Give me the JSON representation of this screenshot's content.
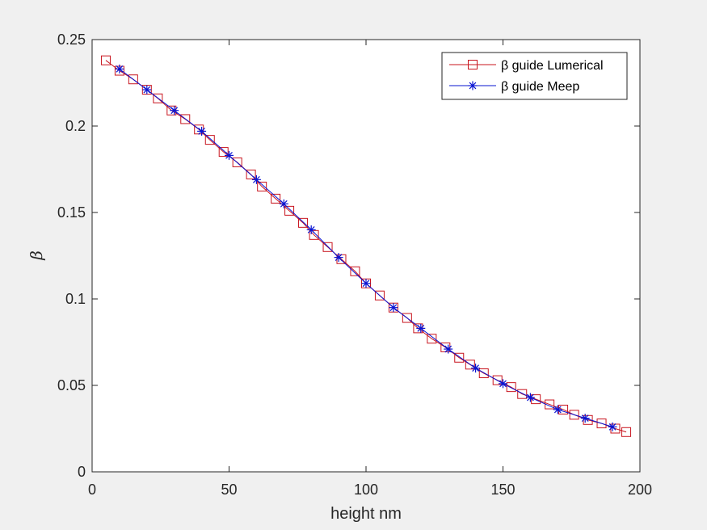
{
  "chart_data": {
    "type": "line",
    "title": "",
    "xlabel": "height nm",
    "ylabel": "β",
    "xlim": [
      0,
      200
    ],
    "ylim": [
      0,
      0.25
    ],
    "xticks": [
      "0",
      "50",
      "100",
      "150",
      "200"
    ],
    "yticks": [
      "0",
      "0.05",
      "0.1",
      "0.15",
      "0.2",
      "0.25"
    ],
    "grid": false,
    "legend_position": "top-right",
    "series": [
      {
        "name": "β guide Lumerical",
        "color": "#c8141e",
        "marker": "square",
        "x": [
          5,
          10,
          15,
          20,
          24,
          29,
          34,
          39,
          43,
          48,
          53,
          58,
          62,
          67,
          72,
          77,
          81,
          86,
          91,
          96,
          100,
          105,
          110,
          115,
          119,
          124,
          129,
          134,
          138,
          143,
          148,
          153,
          157,
          162,
          167,
          172,
          176,
          181,
          186,
          191,
          195
        ],
        "y": [
          0.238,
          0.232,
          0.227,
          0.221,
          0.216,
          0.209,
          0.204,
          0.198,
          0.192,
          0.185,
          0.179,
          0.172,
          0.165,
          0.158,
          0.151,
          0.144,
          0.137,
          0.13,
          0.123,
          0.116,
          0.109,
          0.102,
          0.095,
          0.089,
          0.083,
          0.077,
          0.072,
          0.066,
          0.062,
          0.057,
          0.053,
          0.049,
          0.045,
          0.042,
          0.039,
          0.036,
          0.033,
          0.03,
          0.028,
          0.025,
          0.023
        ]
      },
      {
        "name": "β guide Meep",
        "color": "#0a14d2",
        "marker": "asterisk",
        "x": [
          10,
          20,
          30,
          40,
          50,
          60,
          70,
          80,
          90,
          100,
          110,
          120,
          130,
          140,
          150,
          160,
          170,
          180,
          190
        ],
        "y": [
          0.233,
          0.221,
          0.209,
          0.197,
          0.183,
          0.169,
          0.155,
          0.14,
          0.124,
          0.109,
          0.095,
          0.083,
          0.071,
          0.06,
          0.051,
          0.043,
          0.036,
          0.031,
          0.026
        ]
      }
    ]
  }
}
